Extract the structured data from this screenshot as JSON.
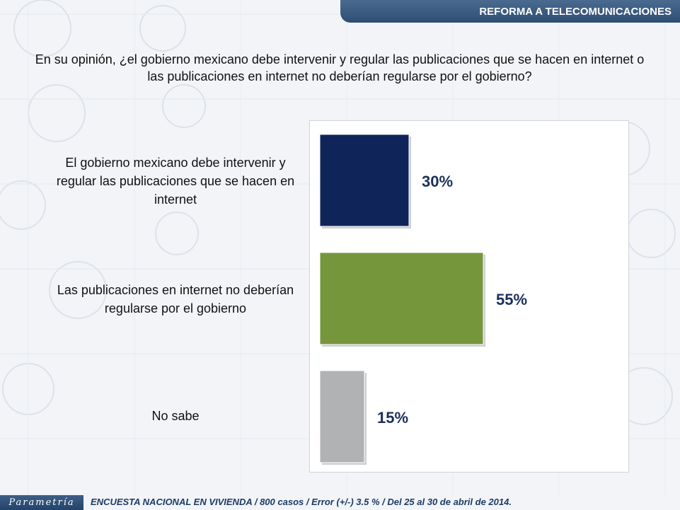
{
  "header": {
    "banner_title": "REFORMA A TELECOMUNICACIONES"
  },
  "question": "En su opinión, ¿el gobierno mexicano debe intervenir y regular las publicaciones que se hacen en internet o las publicaciones en internet no deberían regularse por el gobierno?",
  "chart_data": {
    "type": "bar",
    "orientation": "horizontal",
    "categories": [
      "El gobierno mexicano debe intervenir y regular las publicaciones que se hacen en internet",
      "Las publicaciones en internet no deberían regularse por el gobierno",
      "No sabe"
    ],
    "values": [
      30,
      55,
      15
    ],
    "value_labels": [
      "30%",
      "55%",
      "15%"
    ],
    "colors": [
      "#0f2459",
      "#76963c",
      "#b0b2b4"
    ],
    "xlim": [
      0,
      100
    ],
    "grid": false
  },
  "footer": {
    "logo_text": "Parametría",
    "survey_note": "ENCUESTA NACIONAL EN VIVIENDA / 800 casos / Error (+/-) 3.5 % / Del 25 al 30 de abril de 2014."
  }
}
